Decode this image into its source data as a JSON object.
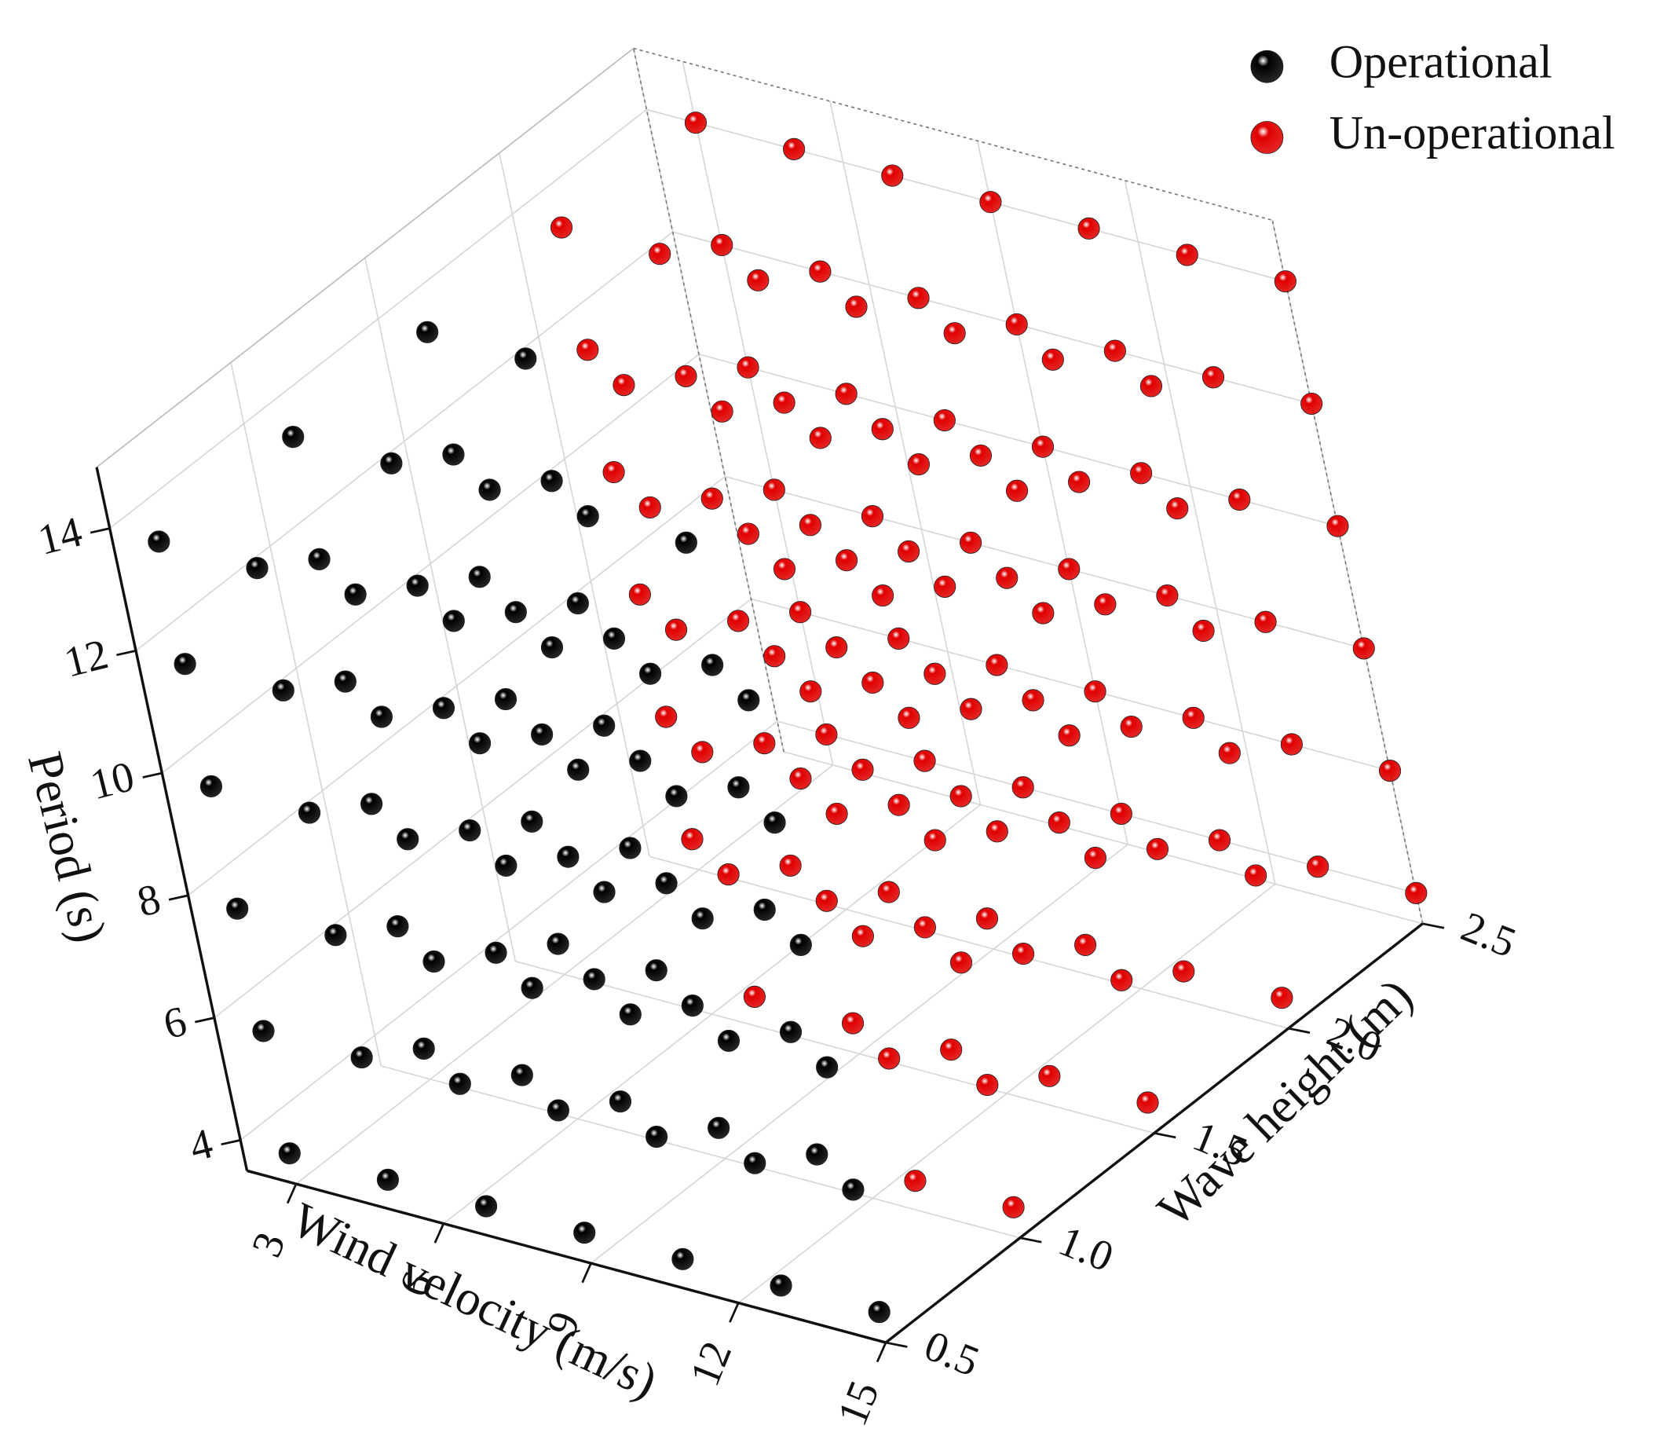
{
  "chart_data": {
    "type": "scatter3d",
    "xlabel": "Wind velocity (m/s)",
    "ylabel": "Wave height (m)",
    "zlabel": "Period (s)",
    "xlim": [
      2,
      15
    ],
    "ylim": [
      0.5,
      2.5
    ],
    "zlim": [
      3.5,
      15
    ],
    "xticks": [
      3,
      6,
      9,
      12,
      15
    ],
    "yticks": [
      0.5,
      {
        "value": 1,
        "label": "1.0"
      },
      1.5,
      {
        "value": 2,
        "label": "2.0"
      },
      2.5
    ],
    "zticks": [
      4,
      6,
      8,
      10,
      12,
      14
    ],
    "grid": true,
    "legend": "upper right",
    "series": [
      {
        "name": "Operational",
        "color": "#000000",
        "x": [
          3,
          3,
          3,
          3,
          3,
          3,
          5,
          5,
          5,
          5,
          5,
          5,
          7,
          7,
          7,
          7,
          7,
          7,
          9,
          9,
          9,
          9,
          9,
          9,
          11,
          11,
          11,
          11,
          11,
          11,
          13,
          13,
          13,
          13,
          13,
          13,
          15,
          15,
          15,
          15,
          15,
          15,
          3,
          3,
          3,
          3,
          3,
          3,
          5,
          5,
          5,
          5,
          5,
          5,
          7,
          7,
          7,
          7,
          7,
          7,
          9,
          9,
          9,
          9,
          9,
          9,
          11,
          11,
          11,
          11,
          11,
          11,
          3,
          3,
          3,
          3,
          3,
          3,
          5,
          5,
          5,
          5,
          5,
          5
        ],
        "y": [
          0.5,
          0.5,
          0.5,
          0.5,
          0.5,
          0.5,
          0.5,
          0.5,
          0.5,
          0.5,
          0.5,
          0.5,
          0.5,
          0.5,
          0.5,
          0.5,
          0.5,
          0.5,
          0.5,
          0.5,
          0.5,
          0.5,
          0.5,
          0.5,
          0.5,
          0.5,
          0.5,
          0.5,
          0.5,
          0.5,
          0.5,
          0.5,
          0.5,
          0.5,
          0.5,
          0.5,
          0.5,
          0.5,
          0.5,
          0.5,
          0.5,
          0.5,
          1,
          1,
          1,
          1,
          1,
          1,
          1,
          1,
          1,
          1,
          1,
          1,
          1,
          1,
          1,
          1,
          1,
          1,
          1,
          1,
          1,
          1,
          1,
          1,
          1,
          1,
          1,
          1,
          1,
          1,
          1.5,
          1.5,
          1.5,
          1.5,
          1.5,
          1.5,
          1.5,
          1.5,
          1.5,
          1.5,
          1.5,
          1.5
        ],
        "z": [
          4,
          6,
          8,
          10,
          12,
          14,
          4,
          6,
          8,
          10,
          12,
          14,
          4,
          6,
          8,
          10,
          12,
          14,
          4,
          6,
          8,
          10,
          12,
          14,
          4,
          6,
          8,
          10,
          12,
          14,
          4,
          6,
          8,
          10,
          12,
          14,
          4,
          6,
          8,
          10,
          12,
          14,
          4,
          6,
          8,
          10,
          12,
          14,
          4,
          6,
          8,
          10,
          12,
          14,
          4,
          6,
          8,
          10,
          12,
          14,
          4,
          6,
          8,
          10,
          12,
          14,
          4,
          6,
          8,
          10,
          12,
          14,
          4,
          6,
          8,
          10,
          12,
          14,
          4,
          6,
          8,
          10,
          12,
          14
        ]
      },
      {
        "name": "Un-operational",
        "color": "#e00000",
        "x": [
          13,
          13,
          13,
          13,
          13,
          13,
          15,
          15,
          15,
          15,
          15,
          15,
          7,
          7,
          7,
          7,
          7,
          7,
          9,
          9,
          9,
          9,
          9,
          9,
          11,
          11,
          11,
          11,
          11,
          11,
          13,
          13,
          13,
          13,
          13,
          13,
          15,
          15,
          15,
          15,
          15,
          15,
          3,
          3,
          3,
          3,
          3,
          3,
          5,
          5,
          5,
          5,
          5,
          5,
          7,
          7,
          7,
          7,
          7,
          7,
          9,
          9,
          9,
          9,
          9,
          9,
          11,
          11,
          11,
          11,
          11,
          11,
          13,
          13,
          13,
          13,
          13,
          13,
          15,
          15,
          15,
          15,
          15,
          15,
          3,
          3,
          3,
          3,
          3,
          3,
          5,
          5,
          5,
          5,
          5,
          5,
          7,
          7,
          7,
          7,
          7,
          7,
          9,
          9,
          9,
          9,
          9,
          9,
          11,
          11,
          11,
          11,
          11,
          11,
          13,
          13,
          13,
          13,
          13,
          13,
          15,
          15,
          15,
          15,
          15,
          15
        ],
        "y": [
          1,
          1,
          1,
          1,
          1,
          1,
          1,
          1,
          1,
          1,
          1,
          1,
          1.5,
          1.5,
          1.5,
          1.5,
          1.5,
          1.5,
          1.5,
          1.5,
          1.5,
          1.5,
          1.5,
          1.5,
          1.5,
          1.5,
          1.5,
          1.5,
          1.5,
          1.5,
          1.5,
          1.5,
          1.5,
          1.5,
          1.5,
          1.5,
          1.5,
          1.5,
          1.5,
          1.5,
          1.5,
          1.5,
          2,
          2,
          2,
          2,
          2,
          2,
          2,
          2,
          2,
          2,
          2,
          2,
          2,
          2,
          2,
          2,
          2,
          2,
          2,
          2,
          2,
          2,
          2,
          2,
          2,
          2,
          2,
          2,
          2,
          2,
          2,
          2,
          2,
          2,
          2,
          2,
          2,
          2,
          2,
          2,
          2,
          2,
          2.5,
          2.5,
          2.5,
          2.5,
          2.5,
          2.5,
          2.5,
          2.5,
          2.5,
          2.5,
          2.5,
          2.5,
          2.5,
          2.5,
          2.5,
          2.5,
          2.5,
          2.5,
          2.5,
          2.5,
          2.5,
          2.5,
          2.5,
          2.5,
          2.5,
          2.5,
          2.5,
          2.5,
          2.5,
          2.5,
          2.5,
          2.5,
          2.5,
          2.5,
          2.5,
          2.5,
          2.5,
          2.5,
          2.5,
          2.5,
          2.5,
          2.5
        ],
        "z": [
          4,
          6,
          8,
          10,
          12,
          14,
          4,
          6,
          8,
          10,
          12,
          14,
          4,
          6,
          8,
          10,
          12,
          14,
          4,
          6,
          8,
          10,
          12,
          14,
          4,
          6,
          8,
          10,
          12,
          14,
          4,
          6,
          8,
          10,
          12,
          14,
          4,
          6,
          8,
          10,
          12,
          14,
          4,
          6,
          8,
          10,
          12,
          14,
          4,
          6,
          8,
          10,
          12,
          14,
          4,
          6,
          8,
          10,
          12,
          14,
          4,
          6,
          8,
          10,
          12,
          14,
          4,
          6,
          8,
          10,
          12,
          14,
          4,
          6,
          8,
          10,
          12,
          14,
          4,
          6,
          8,
          10,
          12,
          14,
          4,
          6,
          8,
          10,
          12,
          14,
          4,
          6,
          8,
          10,
          12,
          14,
          4,
          6,
          8,
          10,
          12,
          14,
          4,
          6,
          8,
          10,
          12,
          14,
          4,
          6,
          8,
          10,
          12,
          14,
          4,
          6,
          8,
          10,
          12,
          14,
          4,
          6,
          8,
          10,
          12,
          14
        ]
      }
    ]
  }
}
